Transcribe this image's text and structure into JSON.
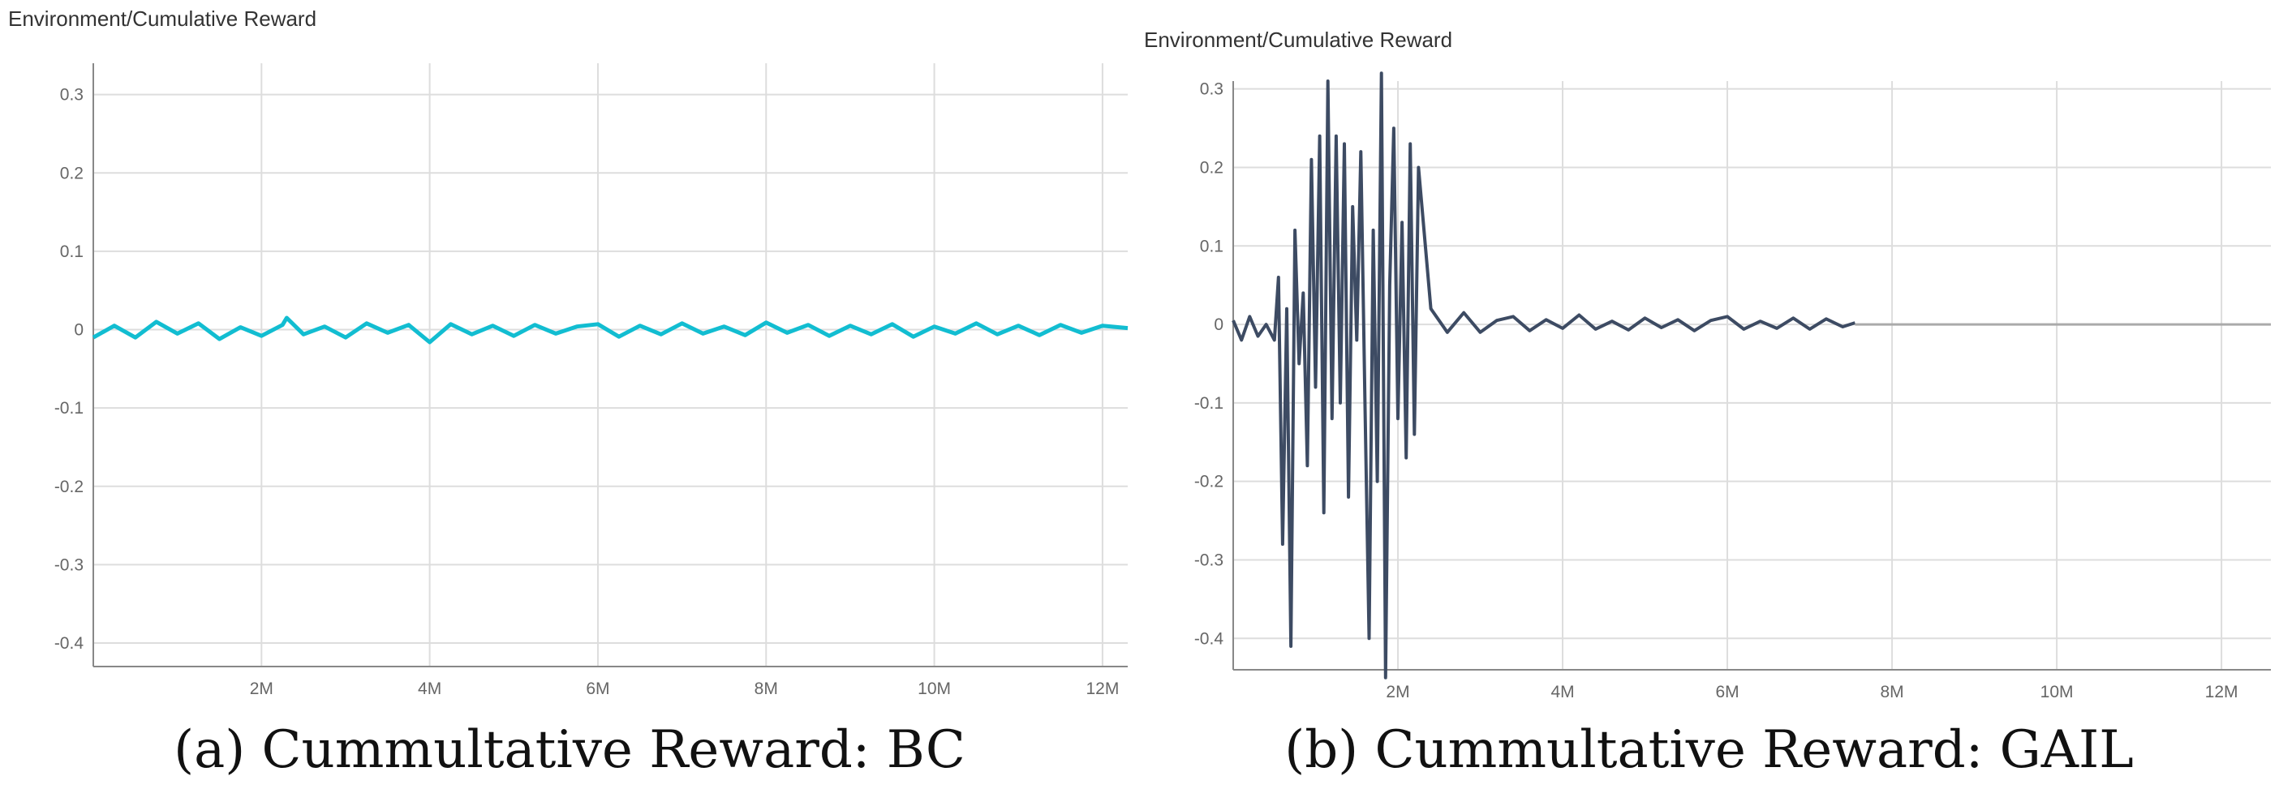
{
  "chart_data": [
    {
      "type": "line",
      "title": "Environment/Cumulative Reward",
      "caption": "(a) Cummultative Reward: BC",
      "xlabel": "",
      "ylabel": "",
      "xlim": [
        0,
        12300000
      ],
      "ylim": [
        -0.43,
        0.34
      ],
      "yticks": [
        {
          "value": 0.3,
          "label": "0.3"
        },
        {
          "value": 0.2,
          "label": "0.2"
        },
        {
          "value": 0.1,
          "label": "0.1"
        },
        {
          "value": 0,
          "label": "0"
        },
        {
          "value": -0.1,
          "label": "-0.1"
        },
        {
          "value": -0.2,
          "label": "-0.2"
        },
        {
          "value": -0.3,
          "label": "-0.3"
        },
        {
          "value": -0.4,
          "label": "-0.4"
        }
      ],
      "xticks": [
        {
          "value": 2000000,
          "label": "2M"
        },
        {
          "value": 4000000,
          "label": "4M"
        },
        {
          "value": 6000000,
          "label": "6M"
        },
        {
          "value": 8000000,
          "label": "8M"
        },
        {
          "value": 10000000,
          "label": "10M"
        },
        {
          "value": 12000000,
          "label": "12M"
        }
      ],
      "grid": true,
      "color": "#12bdd1",
      "series": [
        {
          "x": [
            0,
            250000,
            500000,
            750000,
            1000000,
            1250000,
            1500000,
            1750000,
            2000000,
            2250000,
            2300000,
            2500000,
            2750000,
            3000000,
            3250000,
            3500000,
            3750000,
            4000000,
            4250000,
            4500000,
            4750000,
            5000000,
            5250000,
            5500000,
            5750000,
            6000000,
            6250000,
            6500000,
            6750000,
            7000000,
            7250000,
            7500000,
            7750000,
            8000000,
            8250000,
            8500000,
            8750000,
            9000000,
            9250000,
            9500000,
            9750000,
            10000000,
            10250000,
            10500000,
            10750000,
            11000000,
            11250000,
            11500000,
            11750000,
            12000000,
            12300000
          ],
          "y": [
            -0.01,
            0.005,
            -0.01,
            0.01,
            -0.005,
            0.008,
            -0.012,
            0.003,
            -0.008,
            0.006,
            0.015,
            -0.006,
            0.004,
            -0.01,
            0.008,
            -0.004,
            0.006,
            -0.016,
            0.007,
            -0.006,
            0.005,
            -0.008,
            0.006,
            -0.005,
            0.004,
            0.007,
            -0.009,
            0.005,
            -0.006,
            0.008,
            -0.005,
            0.004,
            -0.007,
            0.009,
            -0.004,
            0.006,
            -0.008,
            0.005,
            -0.006,
            0.007,
            -0.009,
            0.004,
            -0.005,
            0.008,
            -0.006,
            0.005,
            -0.007,
            0.006,
            -0.004,
            0.005,
            0.002
          ]
        }
      ]
    },
    {
      "type": "line",
      "title": "Environment/Cumulative Reward",
      "caption": "(b) Cummultative Reward: GAIL",
      "xlabel": "",
      "ylabel": "",
      "xlim": [
        0,
        12600000
      ],
      "ylim": [
        -0.44,
        0.31
      ],
      "yticks": [
        {
          "value": 0.3,
          "label": "0.3"
        },
        {
          "value": 0.2,
          "label": "0.2"
        },
        {
          "value": 0.1,
          "label": "0.1"
        },
        {
          "value": 0,
          "label": "0"
        },
        {
          "value": -0.1,
          "label": "-0.1"
        },
        {
          "value": -0.2,
          "label": "-0.2"
        },
        {
          "value": -0.3,
          "label": "-0.3"
        },
        {
          "value": -0.4,
          "label": "-0.4"
        }
      ],
      "xticks": [
        {
          "value": 2000000,
          "label": "2M"
        },
        {
          "value": 4000000,
          "label": "4M"
        },
        {
          "value": 6000000,
          "label": "6M"
        },
        {
          "value": 8000000,
          "label": "8M"
        },
        {
          "value": 10000000,
          "label": "10M"
        },
        {
          "value": 12000000,
          "label": "12M"
        }
      ],
      "grid": true,
      "color": "#3d4b63",
      "series": [
        {
          "x": [
            0,
            100000,
            200000,
            300000,
            400000,
            500000,
            550000,
            600000,
            650000,
            700000,
            750000,
            800000,
            850000,
            900000,
            950000,
            1000000,
            1050000,
            1100000,
            1150000,
            1200000,
            1250000,
            1300000,
            1350000,
            1400000,
            1450000,
            1500000,
            1550000,
            1600000,
            1650000,
            1700000,
            1750000,
            1800000,
            1850000,
            1900000,
            1950000,
            2000000,
            2050000,
            2100000,
            2150000,
            2200000,
            2250000,
            2400000,
            2600000,
            2800000,
            3000000,
            3200000,
            3400000,
            3600000,
            3800000,
            4000000,
            4200000,
            4400000,
            4600000,
            4800000,
            5000000,
            5200000,
            5400000,
            5600000,
            5800000,
            6000000,
            6200000,
            6400000,
            6600000,
            6800000,
            7000000,
            7200000,
            7400000,
            7550000
          ],
          "y": [
            0.005,
            -0.02,
            0.01,
            -0.015,
            0.0,
            -0.02,
            0.06,
            -0.28,
            0.02,
            -0.41,
            0.12,
            -0.05,
            0.04,
            -0.18,
            0.21,
            -0.08,
            0.24,
            -0.24,
            0.31,
            -0.12,
            0.24,
            -0.1,
            0.23,
            -0.22,
            0.15,
            -0.02,
            0.22,
            -0.1,
            -0.4,
            0.12,
            -0.2,
            0.32,
            -0.45,
            0.05,
            0.25,
            -0.12,
            0.13,
            -0.17,
            0.23,
            -0.14,
            0.2,
            0.02,
            -0.01,
            0.015,
            -0.01,
            0.005,
            0.01,
            -0.008,
            0.006,
            -0.005,
            0.012,
            -0.006,
            0.004,
            -0.007,
            0.008,
            -0.004,
            0.006,
            -0.008,
            0.005,
            0.01,
            -0.006,
            0.004,
            -0.005,
            0.008,
            -0.006,
            0.007,
            -0.003,
            0.002
          ]
        }
      ]
    }
  ]
}
